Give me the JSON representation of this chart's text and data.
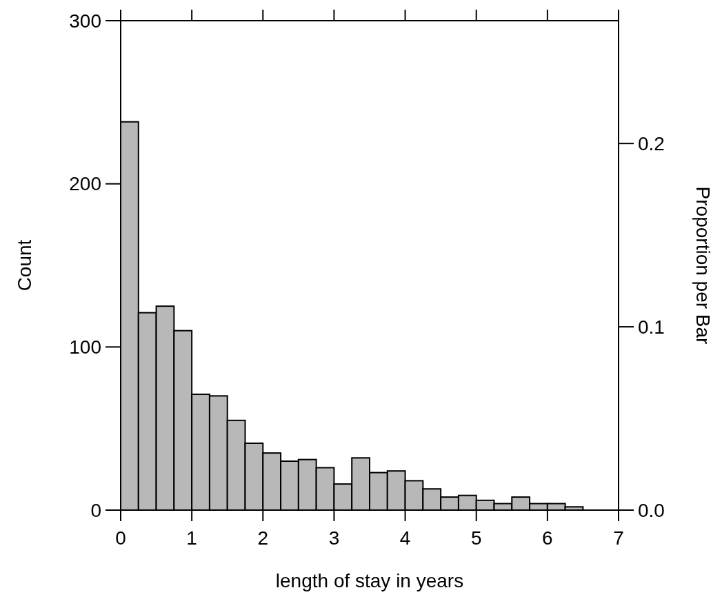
{
  "chart_data": {
    "type": "histogram",
    "xlabel": "length of stay in years",
    "ylabel": "Count",
    "y2label": "Proportion per Bar",
    "bins": [
      0,
      0.25,
      0.5,
      0.75,
      1,
      1.25,
      1.5,
      1.75,
      2,
      2.25,
      2.5,
      2.75,
      3,
      3.25,
      3.5,
      3.75,
      4,
      4.25,
      4.5,
      4.75,
      5,
      5.25,
      5.5,
      5.75,
      6,
      6.25,
      6.5
    ],
    "values": [
      238,
      121,
      125,
      110,
      71,
      70,
      55,
      41,
      35,
      30,
      31,
      26,
      16,
      32,
      23,
      24,
      18,
      13,
      8,
      9,
      6,
      4,
      8,
      4,
      4,
      2
    ],
    "color": "#b8b8b8",
    "xlim": [
      0,
      7
    ],
    "xticks": [
      0,
      1,
      2,
      3,
      4,
      5,
      6,
      7
    ],
    "ylim": [
      0,
      300
    ],
    "yticks": [
      0,
      100,
      200,
      300
    ],
    "y2lim": [
      0,
      0.267
    ],
    "y2ticks": [
      {
        "value": 0,
        "label": "0.0"
      },
      0.1,
      0.2
    ],
    "grid": false
  }
}
